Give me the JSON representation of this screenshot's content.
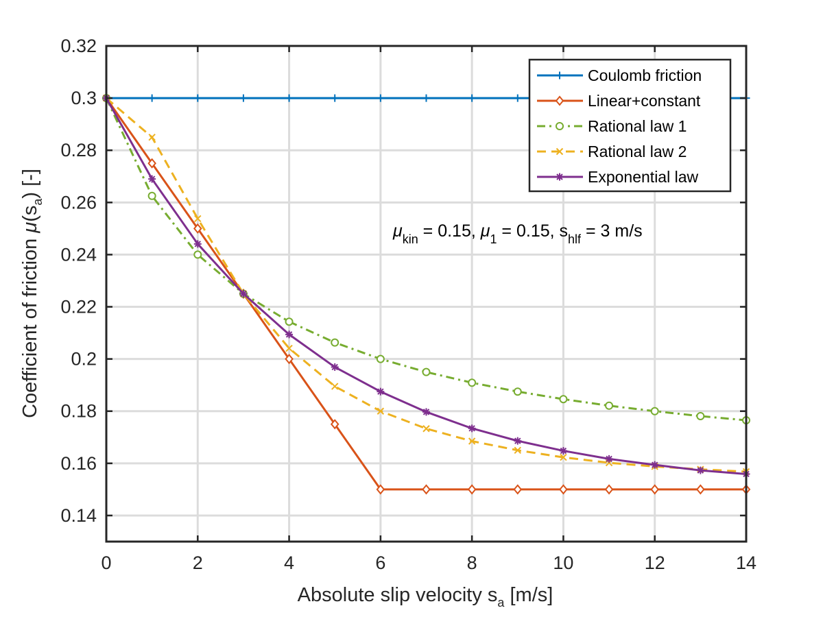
{
  "chart_data": {
    "type": "line",
    "xlabel": {
      "text": "Absolute slip velocity s",
      "sub": "a",
      "tail": " [m/s]"
    },
    "ylabel": {
      "text": "Coefficient of friction ",
      "mu": "μ",
      "paren_open": "(s",
      "sub": "a",
      "tail": ") [-]"
    },
    "xlim": [
      0,
      14
    ],
    "ylim": [
      0.13,
      0.32
    ],
    "xticks": [
      0,
      2,
      4,
      6,
      8,
      10,
      12,
      14
    ],
    "xtick_labels": [
      "0",
      "2",
      "4",
      "6",
      "8",
      "10",
      "12",
      "14"
    ],
    "yticks": [
      0.14,
      0.16,
      0.18,
      0.2,
      0.22,
      0.24,
      0.26,
      0.28,
      0.3,
      0.32
    ],
    "ytick_labels": [
      "0.14",
      "0.16",
      "0.18",
      "0.2",
      "0.22",
      "0.24",
      "0.26",
      "0.28",
      "0.3",
      "0.32"
    ],
    "grid": true,
    "legend_position": "top-right",
    "annotation": {
      "mu1": "μ",
      "sub1": "kin",
      "text1": " = 0.15, ",
      "mu2": "μ",
      "sub2": "1",
      "text2": " = 0.15, s",
      "sub3": "hlf",
      "text3": " = 3 m/s"
    },
    "x": [
      0,
      1,
      2,
      3,
      4,
      5,
      6,
      7,
      8,
      9,
      10,
      11,
      12,
      13,
      14
    ],
    "series": [
      {
        "name": "Coulomb friction",
        "color": "#0072BD",
        "dash": "solid",
        "marker": "plus",
        "values": [
          0.3,
          0.3,
          0.3,
          0.3,
          0.3,
          0.3,
          0.3,
          0.3,
          0.3,
          0.3,
          0.3,
          0.3,
          0.3,
          0.3,
          0.3
        ]
      },
      {
        "name": "Linear+constant",
        "color": "#D95319",
        "dash": "solid",
        "marker": "diamond",
        "values": [
          0.3,
          0.275,
          0.25,
          0.225,
          0.2,
          0.175,
          0.15,
          0.15,
          0.15,
          0.15,
          0.15,
          0.15,
          0.15,
          0.15,
          0.15
        ]
      },
      {
        "name": "Rational law 1",
        "color": "#77AC30",
        "dash": "dashdot",
        "marker": "circle",
        "values": [
          0.3,
          0.2625,
          0.24,
          0.225,
          0.2143,
          0.2063,
          0.2,
          0.195,
          0.1909,
          0.1875,
          0.1846,
          0.1821,
          0.18,
          0.1781,
          0.1765
        ]
      },
      {
        "name": "Rational law 2",
        "color": "#EDB120",
        "dash": "dashed",
        "marker": "x",
        "values": [
          0.3,
          0.285,
          0.2538,
          0.225,
          0.2041,
          0.1895,
          0.18,
          0.1733,
          0.1685,
          0.165,
          0.1623,
          0.1602,
          0.1588,
          0.1577,
          0.1568
        ]
      },
      {
        "name": "Exponential law",
        "color": "#7E2F8E",
        "dash": "solid",
        "marker": "star",
        "values": [
          0.3,
          0.269,
          0.2441,
          0.225,
          0.2094,
          0.1969,
          0.1875,
          0.1797,
          0.1734,
          0.1686,
          0.1648,
          0.1617,
          0.1594,
          0.1573,
          0.1559
        ]
      }
    ]
  }
}
